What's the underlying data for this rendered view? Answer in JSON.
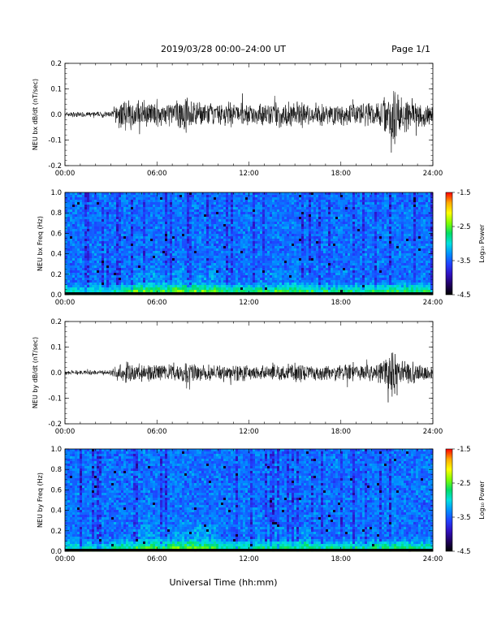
{
  "header": {
    "title": "2019/03/28  00:00–24:00 UT",
    "page": "Page 1/1"
  },
  "xlabel": "Universal Time (hh:mm)",
  "colorbar": {
    "label": "Log₁₀ Power",
    "ticks": [
      "-1.5",
      "-2.5",
      "-3.5",
      "-4.5"
    ],
    "colors": [
      "#ff0000",
      "#ffaa00",
      "#ffff00",
      "#7fff00",
      "#00dd66",
      "#00e0e0",
      "#0090ff",
      "#2040ff",
      "#3010c0",
      "#200060",
      "#000000"
    ]
  },
  "chart_data": [
    {
      "type": "line",
      "panel": "bx-waveform",
      "ylabel": "NEU bx dB/dt (nT/sec)",
      "xlim_hours": [
        0,
        24
      ],
      "ylim": [
        -0.2,
        0.2
      ],
      "x_ticks": [
        "00:00",
        "06:00",
        "12:00",
        "18:00",
        "24:00"
      ],
      "y_ticks": [
        "0.2",
        "0.1",
        "0.0",
        "-0.1",
        "-0.2"
      ],
      "envelope": {
        "hours": [
          0,
          1,
          2,
          3,
          3.5,
          4,
          4.5,
          5,
          6,
          7,
          8,
          8.5,
          9,
          10,
          11,
          12,
          13,
          14,
          15,
          16,
          17,
          18,
          19,
          20,
          20.5,
          21,
          21.3,
          21.6,
          22,
          22.5,
          23,
          23.5,
          24
        ],
        "amplitude": [
          0.012,
          0.012,
          0.012,
          0.014,
          0.05,
          0.07,
          0.06,
          0.055,
          0.05,
          0.06,
          0.075,
          0.06,
          0.05,
          0.05,
          0.055,
          0.05,
          0.05,
          0.055,
          0.06,
          0.05,
          0.05,
          0.05,
          0.05,
          0.055,
          0.07,
          0.09,
          0.16,
          0.12,
          0.09,
          0.07,
          0.06,
          0.05,
          0.04
        ]
      }
    },
    {
      "type": "heatmap",
      "panel": "bx-spectrogram",
      "ylabel": "NEU bx Freq (Hz)",
      "xlim_hours": [
        0,
        24
      ],
      "ylim": [
        0,
        1.0
      ],
      "x_ticks": [
        "00:00",
        "06:00",
        "12:00",
        "18:00",
        "24:00"
      ],
      "y_ticks": [
        "1.0",
        "0.8",
        "0.6",
        "0.4",
        "0.2",
        "0.0"
      ],
      "zlim": [
        -4.5,
        -1.5
      ]
    },
    {
      "type": "line",
      "panel": "by-waveform",
      "ylabel": "NEU by dB/dt (nT/sec)",
      "xlim_hours": [
        0,
        24
      ],
      "ylim": [
        -0.2,
        0.2
      ],
      "x_ticks": [
        "00:00",
        "06:00",
        "12:00",
        "18:00",
        "24:00"
      ],
      "y_ticks": [
        "0.2",
        "0.1",
        "0.0",
        "-0.1",
        "-0.2"
      ],
      "envelope": {
        "hours": [
          0,
          1,
          2,
          3,
          3.5,
          4,
          4.5,
          5,
          6,
          7,
          8,
          8.5,
          9,
          10,
          11,
          12,
          13,
          14,
          15,
          16,
          17,
          18,
          19,
          20,
          20.5,
          21,
          21.3,
          21.6,
          22,
          22.5,
          23,
          23.5,
          24
        ],
        "amplitude": [
          0.01,
          0.01,
          0.01,
          0.012,
          0.04,
          0.05,
          0.045,
          0.04,
          0.035,
          0.04,
          0.05,
          0.04,
          0.035,
          0.035,
          0.04,
          0.035,
          0.035,
          0.035,
          0.04,
          0.035,
          0.035,
          0.035,
          0.035,
          0.04,
          0.05,
          0.07,
          0.12,
          0.09,
          0.06,
          0.05,
          0.04,
          0.035,
          0.03
        ]
      }
    },
    {
      "type": "heatmap",
      "panel": "by-spectrogram",
      "ylabel": "NEU by Freq (Hz)",
      "xlim_hours": [
        0,
        24
      ],
      "ylim": [
        0,
        1.0
      ],
      "x_ticks": [
        "00:00",
        "06:00",
        "12:00",
        "18:00",
        "24:00"
      ],
      "y_ticks": [
        "1.0",
        "0.8",
        "0.6",
        "0.4",
        "0.2",
        "0.0"
      ],
      "zlim": [
        -4.5,
        -1.5
      ]
    }
  ]
}
